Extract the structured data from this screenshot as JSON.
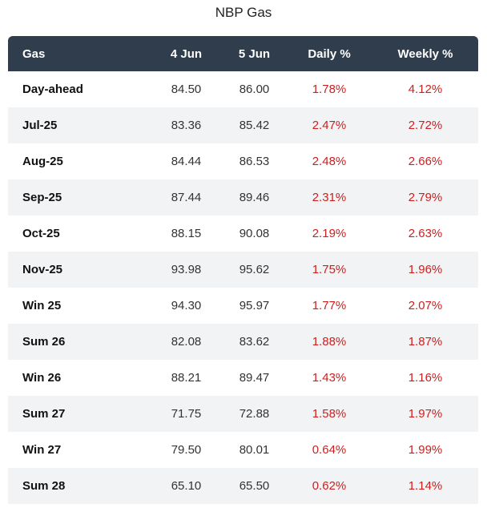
{
  "title": "NBP Gas",
  "colors": {
    "header_bg": "#2f3d4c",
    "positive_change": "#cc1f1f",
    "row_shade": "#f2f3f5"
  },
  "table": {
    "headers": [
      "Gas",
      "4 Jun",
      "5 Jun",
      "Daily %",
      "Weekly %"
    ],
    "rows": [
      [
        "Day-ahead",
        "84.50",
        "86.00",
        "1.78%",
        "4.12%"
      ],
      [
        "Jul-25",
        "83.36",
        "85.42",
        "2.47%",
        "2.72%"
      ],
      [
        "Aug-25",
        "84.44",
        "86.53",
        "2.48%",
        "2.66%"
      ],
      [
        "Sep-25",
        "87.44",
        "89.46",
        "2.31%",
        "2.79%"
      ],
      [
        "Oct-25",
        "88.15",
        "90.08",
        "2.19%",
        "2.63%"
      ],
      [
        "Nov-25",
        "93.98",
        "95.62",
        "1.75%",
        "1.96%"
      ],
      [
        "Win 25",
        "94.30",
        "95.97",
        "1.77%",
        "2.07%"
      ],
      [
        "Sum 26",
        "82.08",
        "83.62",
        "1.88%",
        "1.87%"
      ],
      [
        "Win 26",
        "88.21",
        "89.47",
        "1.43%",
        "1.16%"
      ],
      [
        "Sum 27",
        "71.75",
        "72.88",
        "1.58%",
        "1.97%"
      ],
      [
        "Win 27",
        "79.50",
        "80.01",
        "0.64%",
        "1.99%"
      ],
      [
        "Sum 28",
        "65.10",
        "65.50",
        "0.62%",
        "1.14%"
      ]
    ]
  }
}
